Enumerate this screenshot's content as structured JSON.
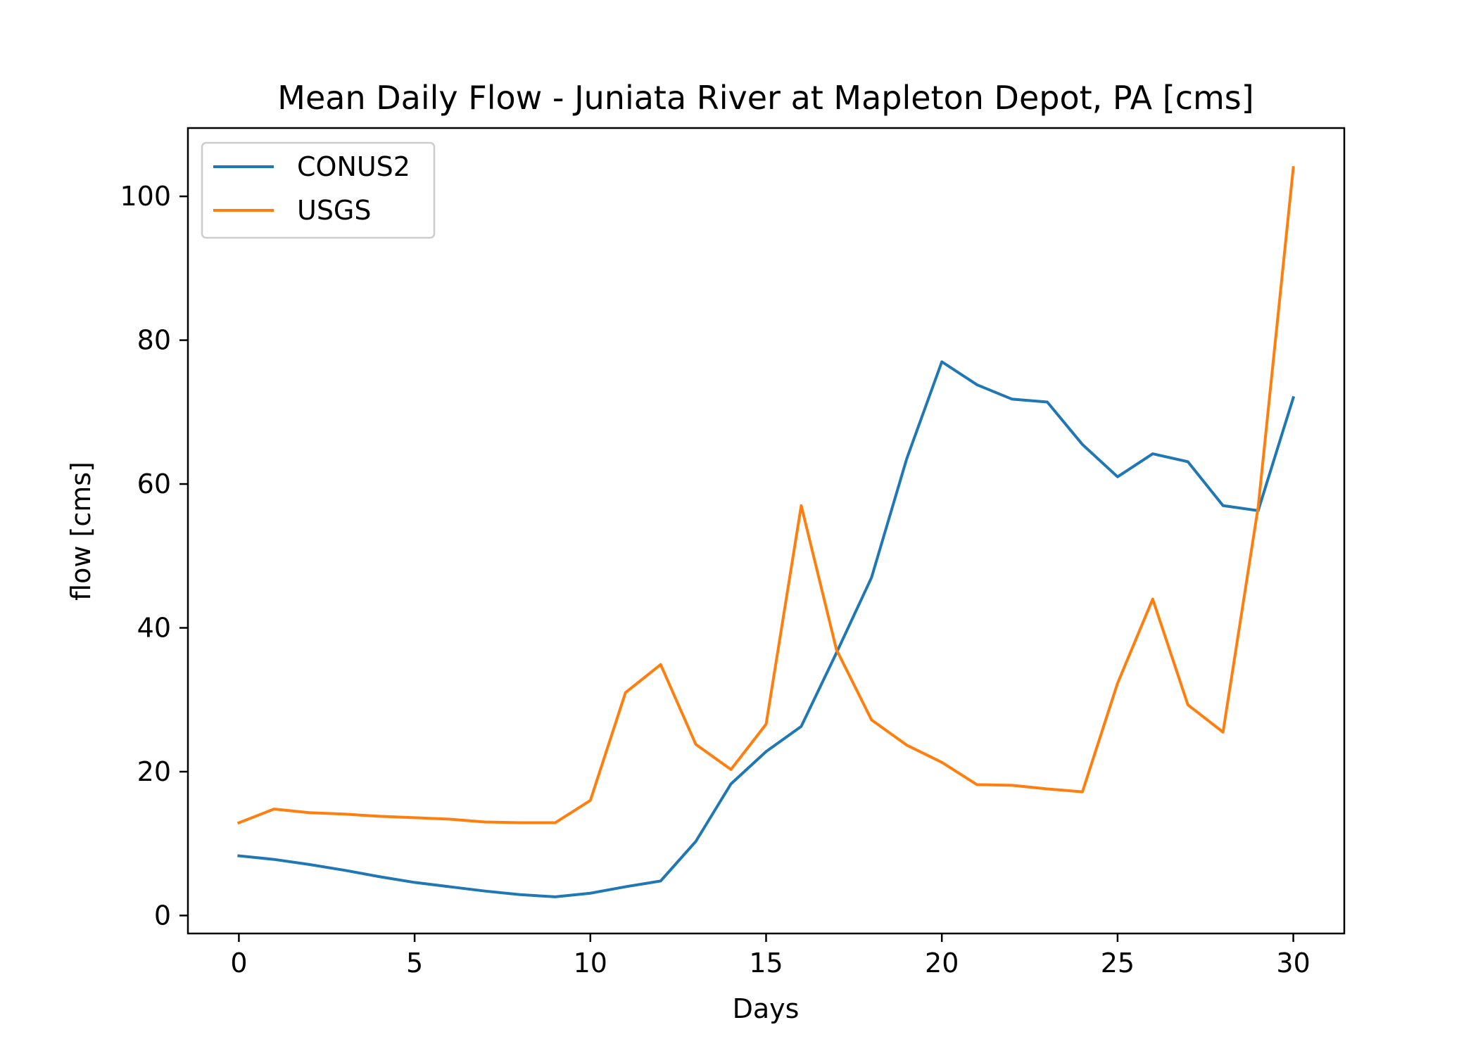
{
  "chart_data": {
    "type": "line",
    "title": "Mean Daily Flow - Juniata River at Mapleton Depot, PA [cms]",
    "xlabel": "Days",
    "ylabel": "flow [cms]",
    "xlim": [
      -1.45,
      31.45
    ],
    "ylim": [
      -2.5,
      109.5
    ],
    "xticks": [
      0,
      5,
      10,
      15,
      20,
      25,
      30
    ],
    "yticks": [
      0,
      20,
      40,
      60,
      80,
      100
    ],
    "grid": false,
    "legend": "top-left",
    "x": [
      0,
      1,
      2,
      3,
      4,
      5,
      6,
      7,
      8,
      9,
      10,
      11,
      12,
      13,
      14,
      15,
      16,
      17,
      18,
      19,
      20,
      21,
      22,
      23,
      24,
      25,
      26,
      27,
      28,
      29,
      30
    ],
    "series": [
      {
        "name": "CONUS2",
        "color": "#1f77b4",
        "values": [
          8.3,
          7.8,
          7.1,
          6.3,
          5.4,
          4.6,
          4.0,
          3.4,
          2.9,
          2.6,
          3.1,
          4.0,
          4.8,
          10.3,
          18.3,
          22.8,
          26.3,
          36.5,
          47.0,
          63.5,
          77.0,
          73.8,
          71.8,
          71.4,
          65.5,
          61.0,
          64.2,
          63.1,
          57.0,
          56.3,
          72.0
        ]
      },
      {
        "name": "USGS",
        "color": "#ff7f0e",
        "values": [
          12.9,
          14.8,
          14.3,
          14.1,
          13.8,
          13.6,
          13.4,
          13.0,
          12.9,
          12.9,
          16.0,
          31.0,
          34.9,
          23.8,
          20.3,
          26.6,
          57.0,
          37.0,
          27.2,
          23.7,
          21.3,
          18.2,
          18.1,
          17.6,
          17.2,
          32.3,
          44.0,
          29.3,
          25.5,
          56.8,
          104.0
        ]
      }
    ]
  }
}
